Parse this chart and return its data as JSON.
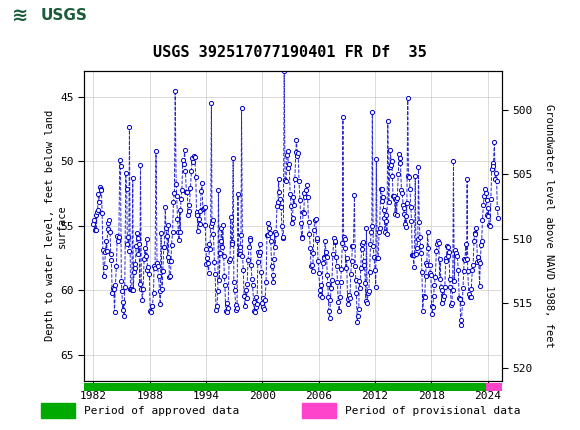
{
  "title": "USGS 392517077190401 FR Df  35",
  "ylabel_left": "Depth to water level, feet below land\nsurface",
  "ylabel_right": "Groundwater level above NAVD 1988, feet",
  "ylim_left": [
    43,
    67
  ],
  "ylim_right": [
    497,
    521
  ],
  "yticks_left": [
    45,
    50,
    55,
    60,
    65
  ],
  "yticks_right": [
    500,
    505,
    510,
    515,
    520
  ],
  "xlim": [
    1981.0,
    2025.5
  ],
  "xticks": [
    1982,
    1988,
    1994,
    2000,
    2006,
    2012,
    2018,
    2024
  ],
  "header_color": "#1a5c38",
  "plot_bg": "#ffffff",
  "grid_color": "#cccccc",
  "data_color": "#0000cc",
  "legend_approved_color": "#00aa00",
  "legend_provisional_color": "#ff44cc",
  "bar_approved_xstart": 1981.0,
  "bar_approved_xend": 2023.8,
  "bar_provisional_xstart": 2023.8,
  "bar_provisional_xend": 2025.5
}
